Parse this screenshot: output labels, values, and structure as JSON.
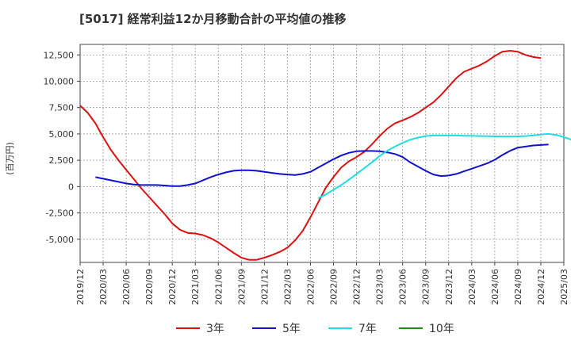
{
  "chart_data": {
    "type": "line",
    "title": "[5017]  経常利益12か月移動合計の平均値の推移",
    "ylabel": "(百万円)",
    "xlabel": "",
    "ylim": [
      -7200,
      13500
    ],
    "y_ticks": [
      -5000,
      -2500,
      0,
      2500,
      5000,
      7500,
      10000,
      12500
    ],
    "y_tick_labels": [
      "-5,000",
      "-2,500",
      "0",
      "2,500",
      "5,000",
      "7,500",
      "10,000",
      "12,500"
    ],
    "x_tick_labels": [
      "2019/12",
      "2020/03",
      "2020/06",
      "2020/09",
      "2020/12",
      "2021/03",
      "2021/06",
      "2021/09",
      "2021/12",
      "2022/03",
      "2022/06",
      "2022/09",
      "2022/12",
      "2023/03",
      "2023/06",
      "2023/09",
      "2023/12",
      "2024/03",
      "2024/06",
      "2024/09",
      "2024/12",
      "2025/03"
    ],
    "grid": true,
    "legend_position": "bottom",
    "series": [
      {
        "name": "3年",
        "color": "#dd1111",
        "start_index": 0,
        "values": [
          7700,
          7000,
          6000,
          4700,
          3500,
          2500,
          1600,
          700,
          -200,
          -1000,
          -1800,
          -2600,
          -3500,
          -4100,
          -4400,
          -4450,
          -4600,
          -4900,
          -5300,
          -5800,
          -6300,
          -6750,
          -6950,
          -6950,
          -6750,
          -6500,
          -6200,
          -5800,
          -5100,
          -4200,
          -2900,
          -1500,
          -100,
          900,
          1800,
          2400,
          2800,
          3300,
          4000,
          4800,
          5500,
          6000,
          6300,
          6600,
          7000,
          7500,
          8000,
          8700,
          9500,
          10300,
          10900,
          11200,
          11500,
          11900,
          12400,
          12800,
          12900,
          12800,
          12500,
          12300,
          12200
        ]
      },
      {
        "name": "5年",
        "color": "#1111cc",
        "start_index": 2,
        "values": [
          900,
          750,
          600,
          450,
          300,
          200,
          150,
          150,
          150,
          100,
          50,
          50,
          150,
          300,
          600,
          900,
          1150,
          1350,
          1500,
          1550,
          1550,
          1500,
          1400,
          1300,
          1200,
          1150,
          1100,
          1200,
          1400,
          1800,
          2200,
          2600,
          2950,
          3200,
          3350,
          3380,
          3380,
          3350,
          3250,
          3100,
          2800,
          2300,
          1900,
          1500,
          1150,
          1000,
          1050,
          1200,
          1450,
          1700,
          1950,
          2200,
          2550,
          3000,
          3400,
          3700,
          3800,
          3900,
          3950,
          4000
        ]
      },
      {
        "name": "7年",
        "color": "#22dddd",
        "start_index": 31,
        "values": [
          -1100,
          -750,
          -300,
          150,
          650,
          1200,
          1750,
          2300,
          2900,
          3400,
          3800,
          4150,
          4450,
          4650,
          4800,
          4850,
          4850,
          4850,
          4850,
          4830,
          4820,
          4800,
          4780,
          4770,
          4760,
          4760,
          4770,
          4800,
          4850,
          4950,
          5000,
          4900,
          4700,
          4450,
          4250,
          4150,
          4050
        ]
      },
      {
        "name": "10年",
        "color": "#228822",
        "start_index": 0,
        "values": []
      }
    ]
  }
}
